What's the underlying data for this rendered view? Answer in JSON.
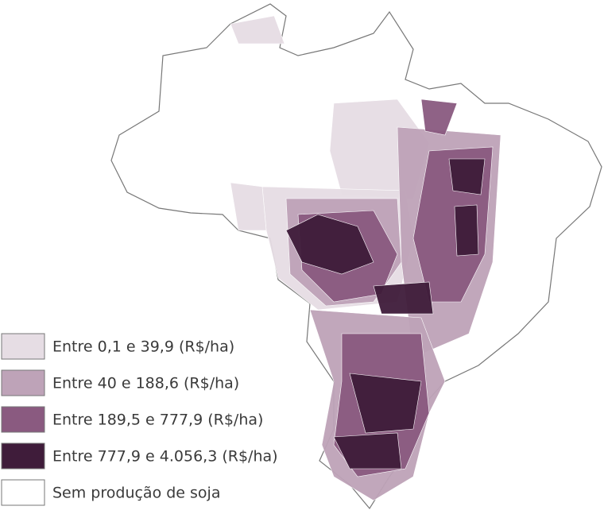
{
  "legend": {
    "items": [
      {
        "label": "Entre 0,1 e 39,9 (R$/ha)",
        "color": "#e6dde4"
      },
      {
        "label": "Entre 40 e 188,6 (R$/ha)",
        "color": "#bea3b8"
      },
      {
        "label": "Entre 189,5 e 777,9 (R$/ha)",
        "color": "#8a5a80"
      },
      {
        "label": "Entre 777,9 e 4.056,3 (R$/ha)",
        "color": "#3f1c3a"
      },
      {
        "label": "Sem produção de soja",
        "color": "#ffffff"
      }
    ]
  }
}
